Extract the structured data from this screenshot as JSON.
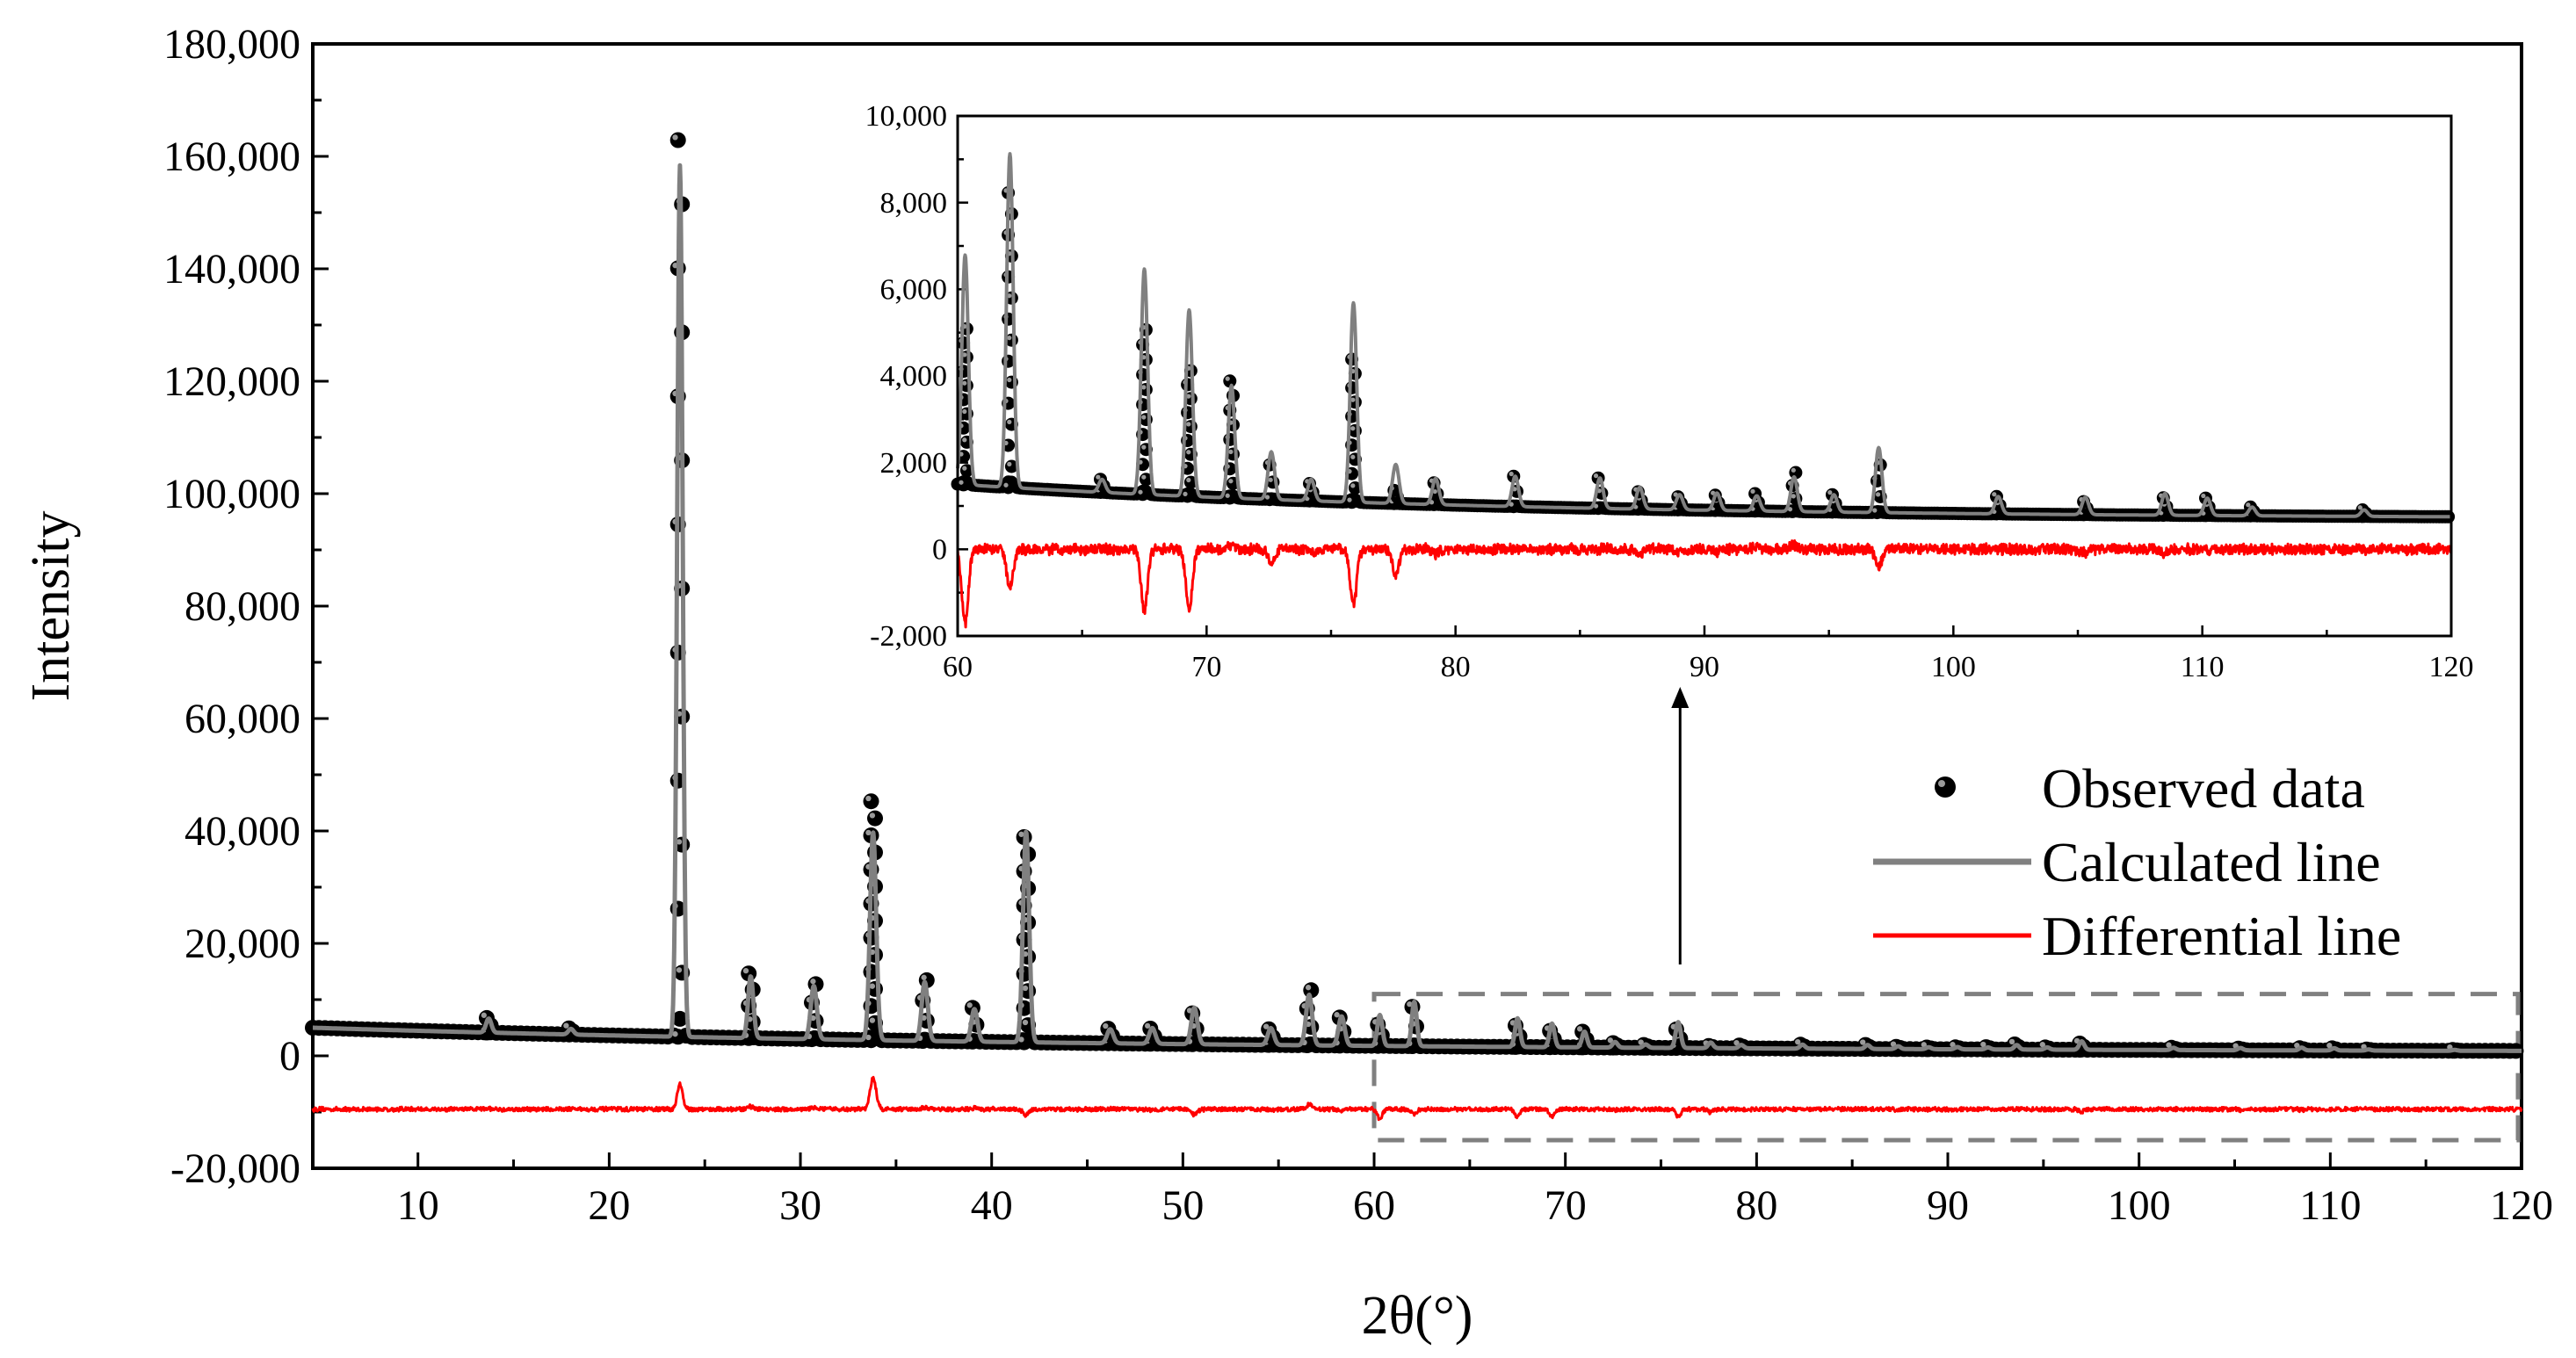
{
  "chart_data": [
    {
      "type": "scatter",
      "panel": "main",
      "title": "",
      "xlabel": "2θ(°)",
      "ylabel": "Intensity",
      "xlim": [
        4.5,
        120
      ],
      "ylim": [
        -20000,
        180000
      ],
      "xticks": [
        10,
        20,
        30,
        40,
        50,
        60,
        70,
        80,
        90,
        100,
        110,
        120
      ],
      "xtick_labels": [
        "10",
        "20",
        "30",
        "40",
        "50",
        "60",
        "70",
        "80",
        "90",
        "100",
        "110",
        "120"
      ],
      "yticks": [
        -20000,
        0,
        20000,
        40000,
        60000,
        80000,
        100000,
        120000,
        140000,
        160000,
        180000
      ],
      "ytick_labels": [
        "-20,000",
        "0",
        "20,000",
        "40,000",
        "60,000",
        "80,000",
        "100,000",
        "120,000",
        "140,000",
        "160,000",
        "180,000"
      ],
      "background": {
        "start": 5000,
        "end": 600
      },
      "difference_offset": -9500,
      "peaks": [
        {
          "x": 13.7,
          "calc": 2500,
          "obs": 2600
        },
        {
          "x": 18.0,
          "calc": 1000,
          "obs": 1100
        },
        {
          "x": 23.7,
          "calc": 155000,
          "obs": 159500
        },
        {
          "x": 27.4,
          "calc": 11000,
          "obs": 11500
        },
        {
          "x": 30.7,
          "calc": 9500,
          "obs": 9800
        },
        {
          "x": 33.8,
          "calc": 37000,
          "obs": 42500
        },
        {
          "x": 36.5,
          "calc": 10500,
          "obs": 10800
        },
        {
          "x": 39.1,
          "calc": 5800,
          "obs": 6000
        },
        {
          "x": 41.8,
          "calc": 37500,
          "obs": 36500
        },
        {
          "x": 46.2,
          "calc": 2500,
          "obs": 2600
        },
        {
          "x": 48.4,
          "calc": 2800,
          "obs": 2700
        },
        {
          "x": 50.6,
          "calc": 6500,
          "obs": 5500
        },
        {
          "x": 54.6,
          "calc": 3000,
          "obs": 2800
        },
        {
          "x": 56.6,
          "calc": 9000,
          "obs": 9800
        },
        {
          "x": 58.3,
          "calc": 5200,
          "obs": 5000
        },
        {
          "x": 60.3,
          "calc": 5500,
          "obs": 3800
        },
        {
          "x": 62.1,
          "calc": 7900,
          "obs": 7000
        },
        {
          "x": 67.5,
          "calc": 5100,
          "obs": 3800
        },
        {
          "x": 69.3,
          "calc": 4200,
          "obs": 2900
        },
        {
          "x": 71.0,
          "calc": 2800,
          "obs": 2800
        },
        {
          "x": 72.6,
          "calc": 1000,
          "obs": 800
        },
        {
          "x": 74.2,
          "calc": 600,
          "obs": 500
        },
        {
          "x": 75.9,
          "calc": 4600,
          "obs": 3300
        },
        {
          "x": 77.6,
          "calc": 1000,
          "obs": 400
        },
        {
          "x": 79.2,
          "calc": 600,
          "obs": 500
        },
        {
          "x": 82.4,
          "calc": 700,
          "obs": 700
        },
        {
          "x": 85.8,
          "calc": 700,
          "obs": 700
        },
        {
          "x": 87.4,
          "calc": 500,
          "obs": 400
        },
        {
          "x": 89.0,
          "calc": 350,
          "obs": 300
        },
        {
          "x": 90.5,
          "calc": 400,
          "obs": 350
        },
        {
          "x": 92.1,
          "calc": 350,
          "obs": 400
        },
        {
          "x": 93.6,
          "calc": 800,
          "obs": 900
        },
        {
          "x": 95.2,
          "calc": 400,
          "obs": 400
        },
        {
          "x": 97.0,
          "calc": 1500,
          "obs": 1100
        },
        {
          "x": 101.8,
          "calc": 400,
          "obs": 400
        },
        {
          "x": 105.3,
          "calc": 400,
          "obs": 300
        },
        {
          "x": 108.5,
          "calc": 500,
          "obs": 400
        },
        {
          "x": 110.2,
          "calc": 400,
          "obs": 400
        },
        {
          "x": 112.0,
          "calc": 200,
          "obs": 200
        },
        {
          "x": 116.5,
          "calc": 150,
          "obs": 150
        }
      ],
      "series": [
        {
          "name": "Observed data",
          "style": "markers",
          "color": "#000000"
        },
        {
          "name": "Calculated line",
          "style": "line",
          "color": "#808080"
        },
        {
          "name": "Differential line",
          "style": "line",
          "color": "#ff0000"
        }
      ],
      "legend_position": "right, below inset",
      "zoom_box": {
        "x_range": [
          60,
          120
        ],
        "y_range": [
          -15000,
          11000
        ],
        "style": "dashed",
        "color": "#808080"
      }
    },
    {
      "type": "scatter",
      "panel": "inset",
      "title": "",
      "xlabel": "",
      "ylabel": "",
      "xlim": [
        60,
        120
      ],
      "ylim": [
        -2000,
        10000
      ],
      "xticks": [
        60,
        70,
        80,
        90,
        100,
        110,
        120
      ],
      "xtick_labels": [
        "60",
        "70",
        "80",
        "90",
        "100",
        "110",
        "120"
      ],
      "yticks": [
        -2000,
        0,
        2000,
        4000,
        6000,
        8000,
        10000
      ],
      "ytick_labels": [
        "-2,000",
        "0",
        "2,000",
        "4,000",
        "6,000",
        "8,000",
        "10,000"
      ],
      "background": {
        "start": 1500,
        "end": 700
      },
      "difference_offset": 0,
      "peaks": [
        {
          "x": 60.3,
          "calc": 5300,
          "obs": 3600
        },
        {
          "x": 62.1,
          "calc": 7700,
          "obs": 6800
        },
        {
          "x": 65.8,
          "calc": 300,
          "obs": 300
        },
        {
          "x": 67.5,
          "calc": 5200,
          "obs": 3800
        },
        {
          "x": 69.3,
          "calc": 4300,
          "obs": 2900
        },
        {
          "x": 71.0,
          "calc": 2600,
          "obs": 2700
        },
        {
          "x": 72.6,
          "calc": 1100,
          "obs": 800
        },
        {
          "x": 74.2,
          "calc": 500,
          "obs": 400
        },
        {
          "x": 75.9,
          "calc": 4600,
          "obs": 3300
        },
        {
          "x": 77.6,
          "calc": 900,
          "obs": 300
        },
        {
          "x": 79.2,
          "calc": 600,
          "obs": 500
        },
        {
          "x": 82.4,
          "calc": 700,
          "obs": 700
        },
        {
          "x": 85.8,
          "calc": 700,
          "obs": 700
        },
        {
          "x": 87.4,
          "calc": 500,
          "obs": 400
        },
        {
          "x": 89.0,
          "calc": 350,
          "obs": 300
        },
        {
          "x": 90.5,
          "calc": 400,
          "obs": 350
        },
        {
          "x": 92.1,
          "calc": 350,
          "obs": 400
        },
        {
          "x": 93.6,
          "calc": 800,
          "obs": 900
        },
        {
          "x": 95.2,
          "calc": 400,
          "obs": 400
        },
        {
          "x": 97.0,
          "calc": 1500,
          "obs": 1100
        },
        {
          "x": 101.8,
          "calc": 400,
          "obs": 400
        },
        {
          "x": 105.3,
          "calc": 400,
          "obs": 300
        },
        {
          "x": 108.5,
          "calc": 500,
          "obs": 400
        },
        {
          "x": 110.2,
          "calc": 400,
          "obs": 400
        },
        {
          "x": 112.0,
          "calc": 200,
          "obs": 200
        },
        {
          "x": 116.5,
          "calc": 150,
          "obs": 150
        }
      ],
      "series": [
        {
          "name": "Observed data",
          "style": "markers",
          "color": "#000000"
        },
        {
          "name": "Calculated line",
          "style": "line",
          "color": "#808080"
        },
        {
          "name": "Differential line",
          "style": "line",
          "color": "#ff0000"
        }
      ]
    }
  ],
  "legend": {
    "items": [
      {
        "label": "Observed data",
        "color": "#000000",
        "icon": "filled-circle-marker"
      },
      {
        "label": "Calculated line",
        "color": "#808080",
        "icon": "gray-line-swatch"
      },
      {
        "label": "Differential line",
        "color": "#ff0000",
        "icon": "red-line-swatch"
      }
    ]
  }
}
